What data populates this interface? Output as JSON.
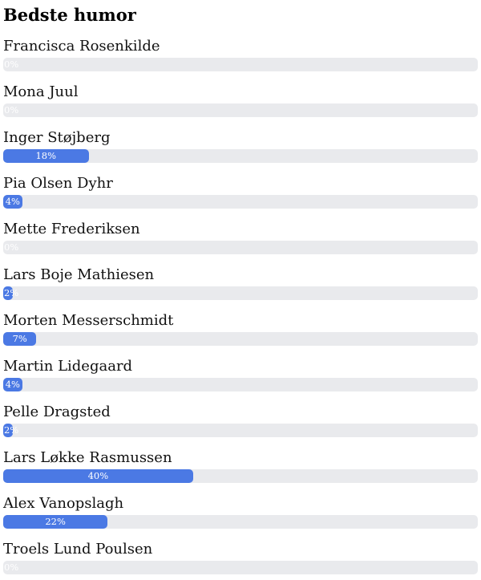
{
  "title": "Bedste humor",
  "chart_data": {
    "type": "bar",
    "orientation": "horizontal",
    "title": "Bedste humor",
    "categories": [
      "Francisca Rosenkilde",
      "Mona Juul",
      "Inger Støjberg",
      "Pia Olsen Dyhr",
      "Mette Frederiksen",
      "Lars Boje Mathiesen",
      "Morten Messerschmidt",
      "Martin Lidegaard",
      "Pelle Dragsted",
      "Lars Løkke Rasmussen",
      "Alex Vanopslagh",
      "Troels Lund Poulsen"
    ],
    "values": [
      0,
      0,
      18,
      4,
      0,
      2,
      7,
      4,
      2,
      40,
      22,
      0
    ],
    "bar_labels": [
      "0%",
      "0%",
      "18%",
      "4%",
      "0%",
      "2%",
      "7%",
      "4%",
      "2%",
      "40%",
      "22%",
      "0%"
    ],
    "value_suffix": "%",
    "xlim": [
      0,
      100
    ],
    "grid": false,
    "legend": false
  },
  "colors": {
    "bar_fill": "#4b79e4",
    "bar_track": "#e9eaed",
    "bar_label_text": "#ffffff",
    "name_text": "#111111",
    "title_text": "#000000"
  }
}
